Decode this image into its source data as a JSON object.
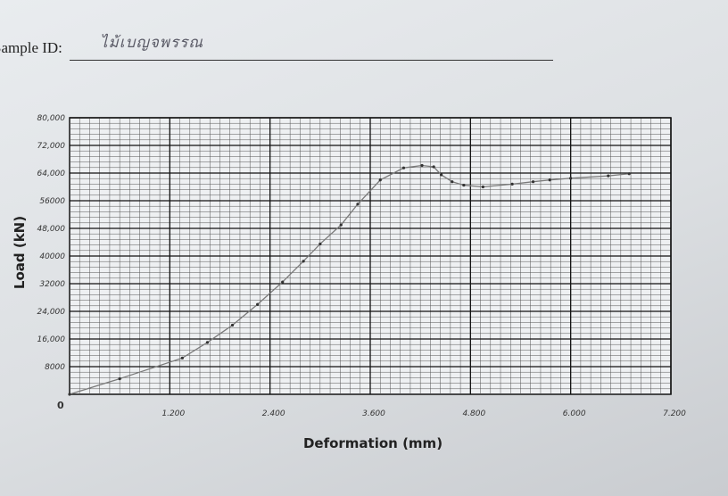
{
  "sample": {
    "label": "Sample ID:",
    "value": "ไม้เบญจพรรณ"
  },
  "chart_data": {
    "type": "line",
    "xlabel": "Deformation (mm)",
    "ylabel": "Load (kN)",
    "origin_label": "0",
    "xlim": [
      0,
      7.2
    ],
    "ylim": [
      0,
      80000
    ],
    "x_ticks": [
      1.2,
      2.4,
      3.6,
      4.8,
      6.0,
      7.2
    ],
    "x_tick_labels": [
      "1.200",
      "2.400",
      "3.600",
      "4.800",
      "6.000",
      "7.200"
    ],
    "y_ticks": [
      8000,
      16000,
      24000,
      32000,
      40000,
      48000,
      56000,
      64000,
      72000,
      80000
    ],
    "y_tick_labels": [
      "8000",
      "16,000",
      "24,000",
      "32000",
      "40000",
      "48,000",
      "56000",
      "64,000",
      "72,000",
      "80,000"
    ],
    "grid": true,
    "line_color": "#7a7a7a",
    "series": [
      {
        "name": "",
        "x": [
          0,
          0.6,
          1.35,
          1.65,
          1.95,
          2.25,
          2.55,
          2.8,
          3.0,
          3.25,
          3.45,
          3.72,
          4.0,
          4.22,
          4.36,
          4.45,
          4.58,
          4.72,
          4.95,
          5.3,
          5.55,
          5.75,
          6.0,
          6.45,
          6.7
        ],
        "y": [
          0,
          4500,
          10500,
          15000,
          20000,
          26000,
          32500,
          38500,
          43500,
          49000,
          55000,
          62000,
          65500,
          66200,
          65800,
          63500,
          61500,
          60500,
          60000,
          60800,
          61500,
          62000,
          62500,
          63200,
          63800
        ]
      }
    ]
  }
}
